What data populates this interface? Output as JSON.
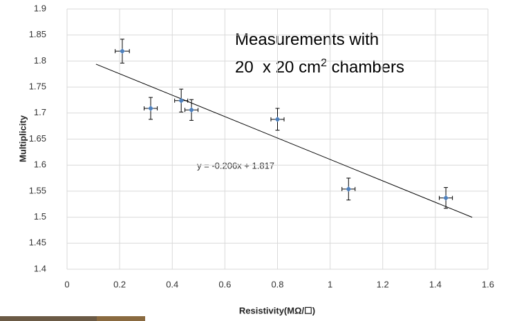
{
  "chart_data": {
    "type": "scatter",
    "x_label": "Resistivity(MΩ/☐)",
    "y_label": "Multiplicity",
    "x": [
      0.21,
      0.318,
      0.434,
      0.473,
      0.8,
      1.07,
      1.44
    ],
    "y": [
      1.819,
      1.709,
      1.724,
      1.706,
      1.688,
      1.554,
      1.537
    ],
    "yerr": [
      0.023,
      0.021,
      0.022,
      0.02,
      0.021,
      0.021,
      0.02
    ],
    "xerr": [
      0.027,
      0.025,
      0.025,
      0.025,
      0.025,
      0.025,
      0.025
    ],
    "color": "#4f81bd",
    "xlim": [
      0,
      1.6
    ],
    "xticks": [
      0,
      0.2,
      0.4,
      0.6,
      0.8,
      1,
      1.2,
      1.4,
      1.6
    ],
    "ylim": [
      1.4,
      1.9
    ],
    "yticks": [
      1.4,
      1.45,
      1.5,
      1.55,
      1.6,
      1.65,
      1.7,
      1.75,
      1.8,
      1.85,
      1.9
    ],
    "grid": true,
    "trendline": {
      "label": "y = -0.206x + 1.817",
      "x": [
        0.11,
        1.54
      ],
      "y": [
        1.794,
        1.4998
      ]
    },
    "annotation": {
      "line1": "Measurements with",
      "line2": "20  x 20 cm",
      "superscript": "2",
      "line2_end": " chambers"
    }
  }
}
